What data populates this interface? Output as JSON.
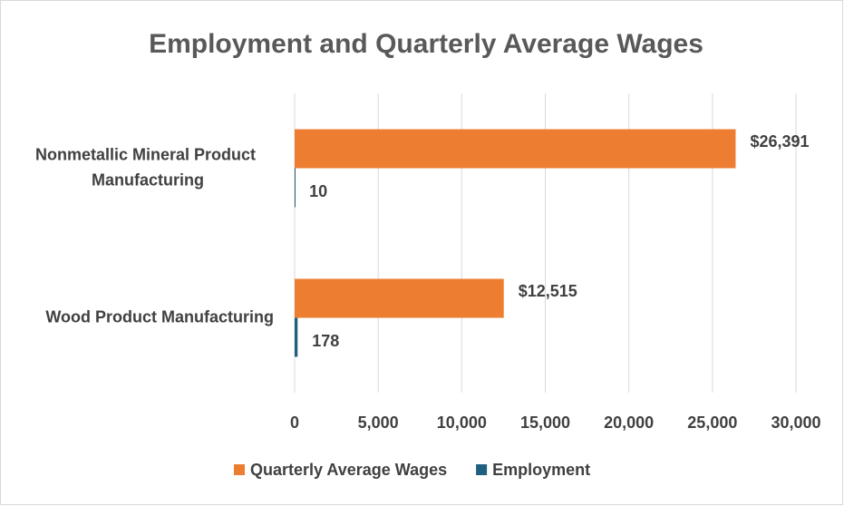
{
  "chart_data": {
    "type": "bar",
    "orientation": "horizontal",
    "title": "Employment and Quarterly Average Wages",
    "categories": [
      "Nonmetallic Mineral Product Manufacturing",
      "Wood Product Manufacturing"
    ],
    "series": [
      {
        "name": "Quarterly Average Wages",
        "color": "#ed7d31",
        "values": [
          26391,
          12515
        ],
        "value_labels": [
          "$26,391",
          "$12,515"
        ]
      },
      {
        "name": "Employment",
        "color": "#1f5f7f",
        "values": [
          10,
          178
        ]
      }
    ],
    "xlim": [
      0,
      30000
    ],
    "xticks": [
      0,
      {
        "value": 5000,
        "label": "5,000"
      },
      {
        "value": 10000,
        "label": "10,000"
      },
      {
        "value": 15000,
        "label": "15,000"
      },
      {
        "value": 20000,
        "label": "20,000"
      },
      {
        "value": 25000,
        "label": "25,000"
      },
      {
        "value": 30000,
        "label": "30,000"
      }
    ],
    "grid": true,
    "legend": "bottom"
  }
}
